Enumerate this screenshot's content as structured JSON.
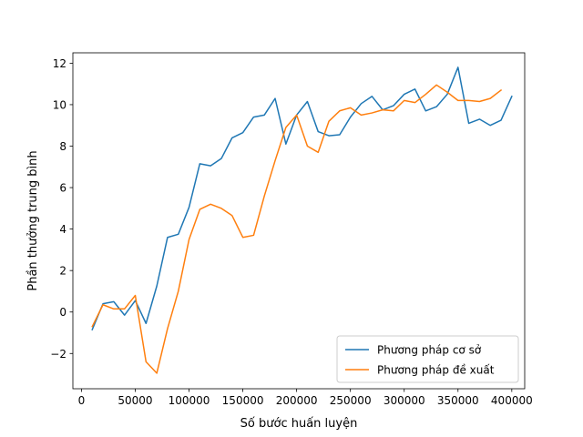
{
  "chart_data": {
    "type": "line",
    "title": "",
    "xlabel": "Số bước huấn luyện",
    "ylabel": "Phần thưởng trung bình",
    "xlim": [
      -8000,
      412000
    ],
    "ylim": [
      -3.7,
      12.5
    ],
    "xticks": [
      0,
      50000,
      100000,
      150000,
      200000,
      250000,
      300000,
      350000,
      400000
    ],
    "xtick_labels": [
      "0",
      "50000",
      "100000",
      "150000",
      "200000",
      "250000",
      "300000",
      "350000",
      "400000"
    ],
    "yticks": [
      -2,
      0,
      2,
      4,
      6,
      8,
      10,
      12
    ],
    "ytick_labels": [
      "−2",
      "0",
      "2",
      "4",
      "6",
      "8",
      "10",
      "12"
    ],
    "grid": false,
    "legend_position": "lower-right",
    "series": [
      {
        "name": "Phương pháp cơ sở",
        "color": "#1f77b4",
        "x": [
          10000,
          20000,
          30000,
          40000,
          50000,
          60000,
          70000,
          80000,
          90000,
          100000,
          110000,
          120000,
          130000,
          140000,
          150000,
          160000,
          170000,
          180000,
          190000,
          200000,
          210000,
          220000,
          230000,
          240000,
          250000,
          260000,
          270000,
          280000,
          290000,
          300000,
          310000,
          320000,
          330000,
          340000,
          350000,
          360000,
          370000,
          380000,
          390000,
          400000
        ],
        "y": [
          -0.85,
          0.4,
          0.5,
          -0.15,
          0.55,
          -0.55,
          1.25,
          3.6,
          3.75,
          5.05,
          7.15,
          7.05,
          7.4,
          8.4,
          8.65,
          9.4,
          9.5,
          10.3,
          8.1,
          9.5,
          10.15,
          8.7,
          8.5,
          8.55,
          9.4,
          10.05,
          10.4,
          9.75,
          9.95,
          10.5,
          10.75,
          9.7,
          9.9,
          10.5,
          11.8,
          9.1,
          9.3,
          9.0,
          9.25,
          10.4
        ]
      },
      {
        "name": "Phương pháp đề xuất",
        "color": "#ff7f0e",
        "x": [
          10000,
          20000,
          30000,
          40000,
          50000,
          60000,
          70000,
          80000,
          90000,
          100000,
          110000,
          120000,
          130000,
          140000,
          150000,
          160000,
          170000,
          180000,
          190000,
          200000,
          210000,
          220000,
          230000,
          240000,
          250000,
          260000,
          270000,
          280000,
          290000,
          300000,
          310000,
          320000,
          330000,
          340000,
          350000,
          360000,
          370000,
          380000,
          390000
        ],
        "y": [
          -0.7,
          0.35,
          0.15,
          0.15,
          0.8,
          -2.4,
          -2.95,
          -0.8,
          1.0,
          3.5,
          4.95,
          5.2,
          5.0,
          4.65,
          3.6,
          3.7,
          5.6,
          7.3,
          8.9,
          9.5,
          8.0,
          7.7,
          9.2,
          9.7,
          9.85,
          9.5,
          9.6,
          9.75,
          9.7,
          10.2,
          10.1,
          10.5,
          10.95,
          10.6,
          10.2,
          10.2,
          10.15,
          10.3,
          10.7
        ]
      }
    ]
  }
}
